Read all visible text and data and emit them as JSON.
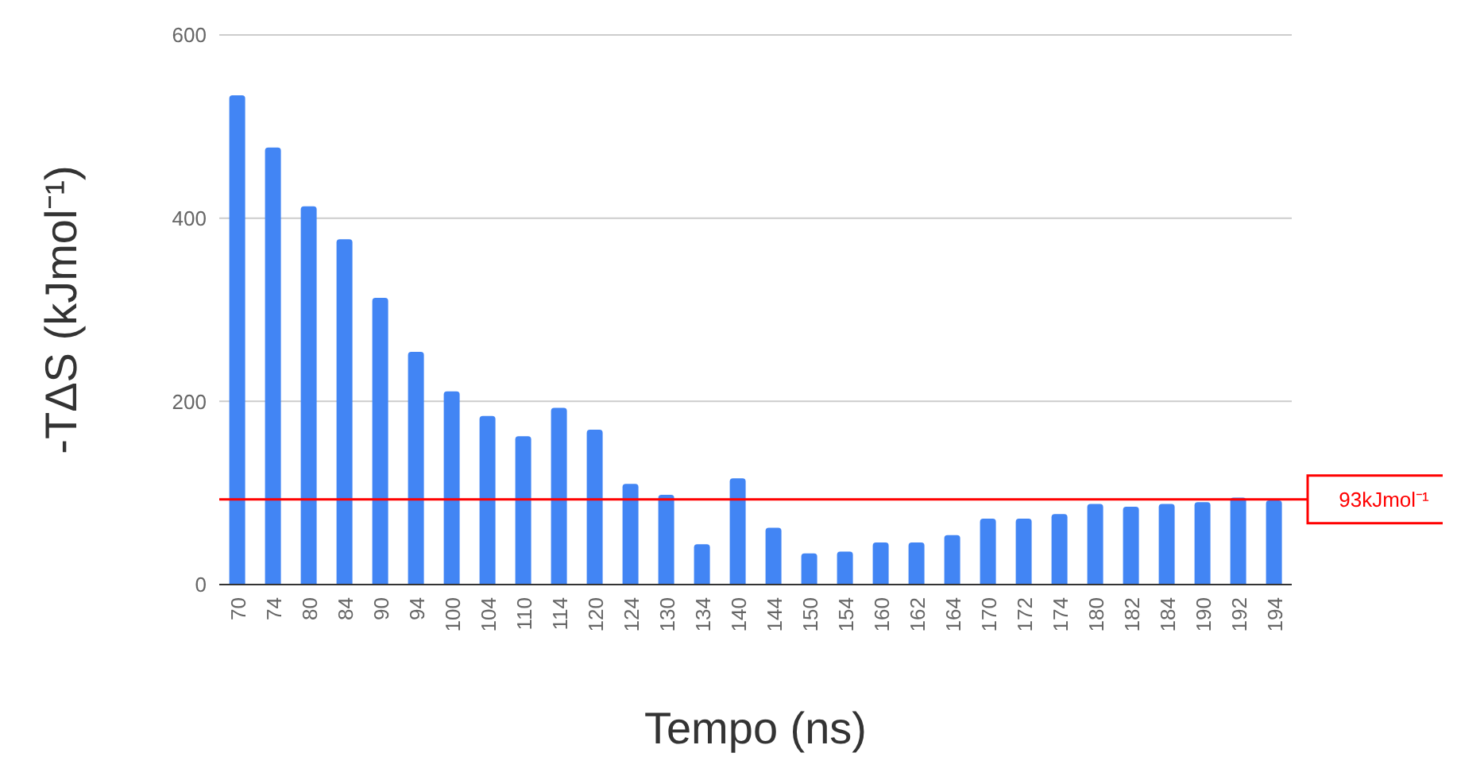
{
  "chart_data": {
    "type": "bar",
    "xlabel": "Tempo (ns)",
    "ylabel": "-TΔS (kJmol⁻¹)",
    "categories": [
      "70",
      "74",
      "80",
      "84",
      "90",
      "94",
      "100",
      "104",
      "110",
      "114",
      "120",
      "124",
      "130",
      "134",
      "140",
      "144",
      "150",
      "154",
      "160",
      "162",
      "164",
      "170",
      "172",
      "174",
      "180",
      "182",
      "184",
      "190",
      "192",
      "194"
    ],
    "values": [
      534,
      477,
      413,
      377,
      313,
      254,
      211,
      184,
      162,
      193,
      169,
      110,
      98,
      44,
      116,
      62,
      34,
      36,
      46,
      46,
      54,
      72,
      72,
      77,
      88,
      85,
      88,
      90,
      95,
      92
    ],
    "color": "#4285f4",
    "ylim": [
      0,
      600
    ],
    "yticks": [
      0,
      200,
      400,
      600
    ],
    "grid": "y",
    "ref_lines": [
      {
        "axis": "y",
        "value": 93,
        "label": "93kJmol⁻¹",
        "color": "#ff0000"
      }
    ]
  }
}
